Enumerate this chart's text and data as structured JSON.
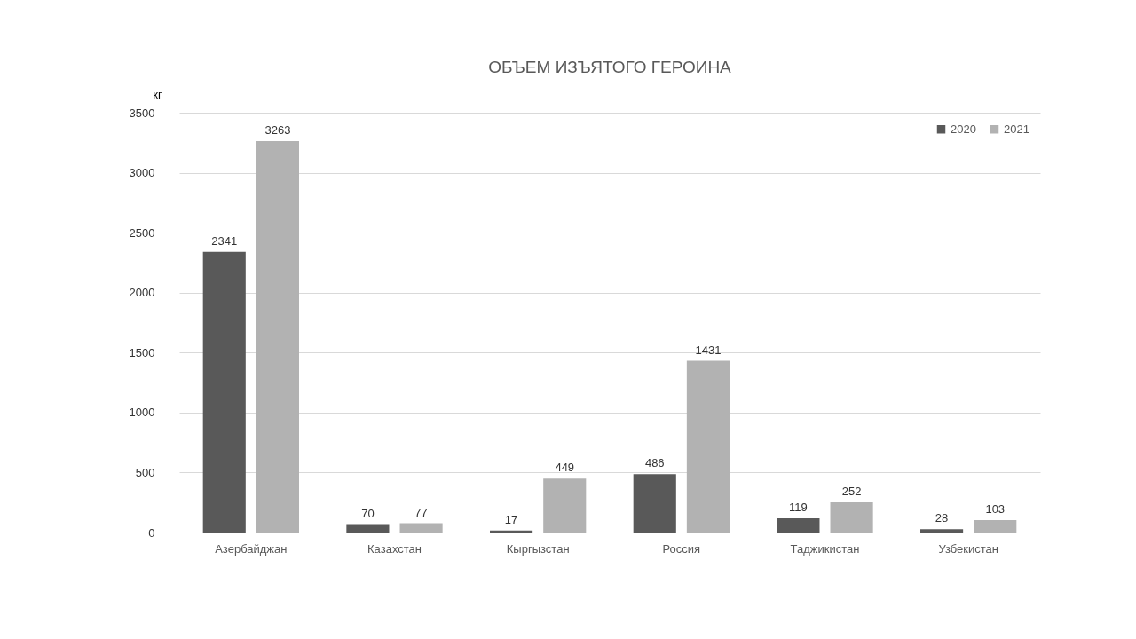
{
  "chart_data": {
    "type": "bar",
    "title": "ОБЪЕМ ИЗЪЯТОГО ГЕРОИНА",
    "ylabel": "кг",
    "categories": [
      "Азербайджан",
      "Казахстан",
      "Кыргызстан",
      "Россия",
      "Таджикистан",
      "Узбекистан"
    ],
    "series": [
      {
        "name": "2020",
        "color": "#595959",
        "values": [
          2341,
          70,
          17,
          486,
          119,
          28
        ]
      },
      {
        "name": "2021",
        "color": "#b2b2b2",
        "values": [
          3263,
          77,
          449,
          1431,
          252,
          103
        ]
      }
    ],
    "ylim": [
      0,
      3500
    ],
    "yticks": [
      0,
      500,
      1000,
      1500,
      2000,
      2500,
      3000,
      3500
    ],
    "grid": "y",
    "legend": "top right",
    "data_labels": true
  }
}
